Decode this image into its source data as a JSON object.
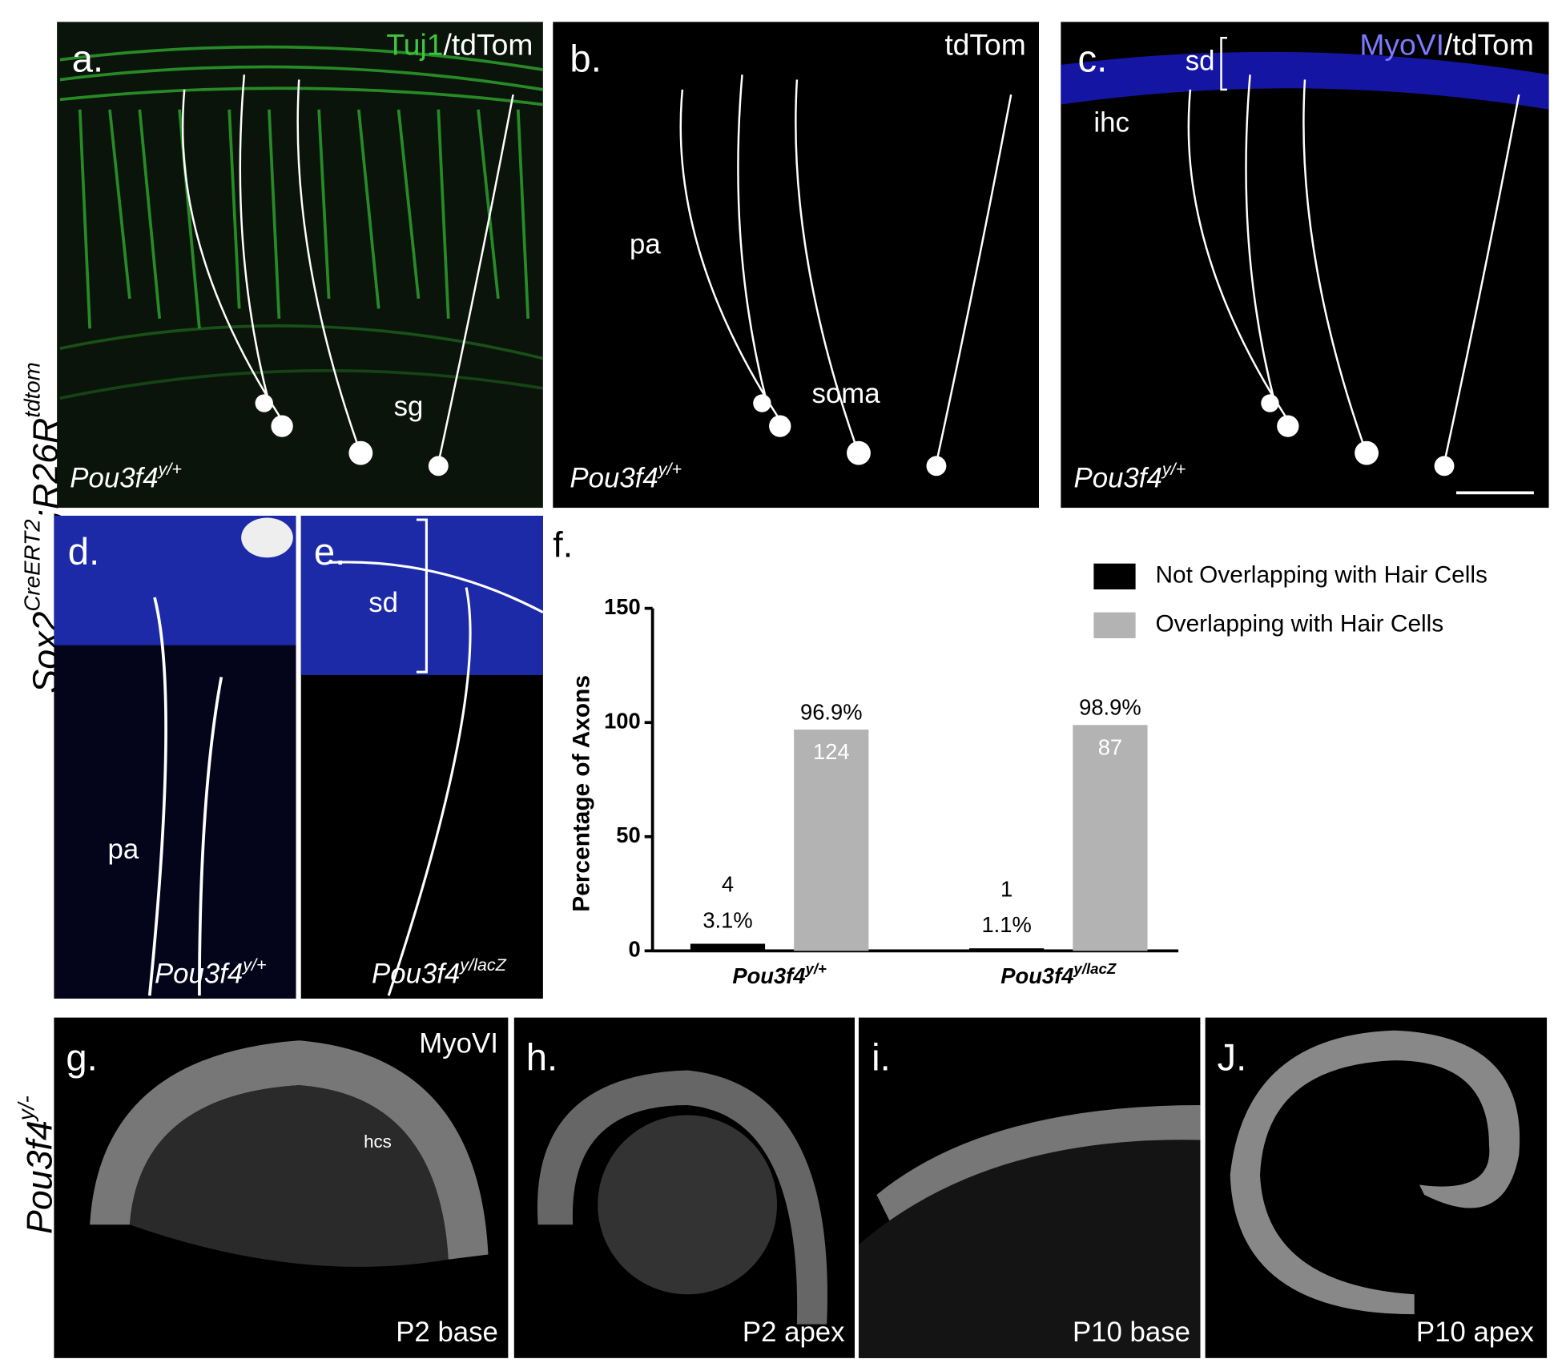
{
  "row_labels": {
    "top": [
      "Sox2",
      "CreERT2",
      ";R26R",
      "tdtom"
    ],
    "bottom": [
      "Pou3f4",
      "y/-"
    ]
  },
  "panels": {
    "a": {
      "label": "a.",
      "stain": [
        "Tuj1",
        "/tdTom"
      ],
      "annotations": [
        "sg"
      ],
      "genotype": [
        "Pou3f4",
        "y/+"
      ]
    },
    "b": {
      "label": "b.",
      "stain": [
        "tdTom"
      ],
      "annotations": [
        "pa",
        "soma"
      ],
      "genotype": [
        "Pou3f4",
        "y/+"
      ]
    },
    "c": {
      "label": "c.",
      "stain": [
        "MyoVI",
        "/tdTom"
      ],
      "annotations": [
        "sd",
        "ihc"
      ],
      "genotype": [
        "Pou3f4",
        "y/+"
      ]
    },
    "d": {
      "label": "d.",
      "annotations": [
        "pa"
      ],
      "genotype": [
        "Pou3f4",
        "y/+"
      ]
    },
    "e": {
      "label": "e.",
      "annotations": [
        "sd"
      ],
      "genotype": [
        "Pou3f4",
        "y/lacZ"
      ]
    },
    "g": {
      "label": "g.",
      "stain": [
        "MyoVI"
      ],
      "annotations": [
        "hcs"
      ],
      "caption": "P2 base"
    },
    "h": {
      "label": "h.",
      "caption": "P2 apex"
    },
    "i": {
      "label": "i.",
      "caption": "P10 base"
    },
    "j": {
      "label": "J.",
      "caption": "P10 apex"
    }
  },
  "chart_data": {
    "type": "bar",
    "panel_label": "f.",
    "ylabel": "Percentage of Axons",
    "categories": [
      "Pou3f4",
      "Pou3f4"
    ],
    "category_superscripts": [
      "y/+",
      "y/lacZ"
    ],
    "series": [
      {
        "name": "Not Overlapping with Hair Cells",
        "color": "#000000",
        "values": [
          3.1,
          1.1
        ],
        "value_labels": [
          "3.1%",
          "1.1%"
        ],
        "counts": [
          4,
          1
        ]
      },
      {
        "name": "Overlapping with Hair Cells",
        "color": "#b3b3b3",
        "values": [
          96.9,
          98.9
        ],
        "value_labels": [
          "96.9%",
          "98.9%"
        ],
        "counts": [
          124,
          87
        ]
      }
    ],
    "ylim": [
      0,
      150
    ],
    "yticks": [
      0,
      50,
      100,
      150
    ],
    "legend": "top-right"
  }
}
